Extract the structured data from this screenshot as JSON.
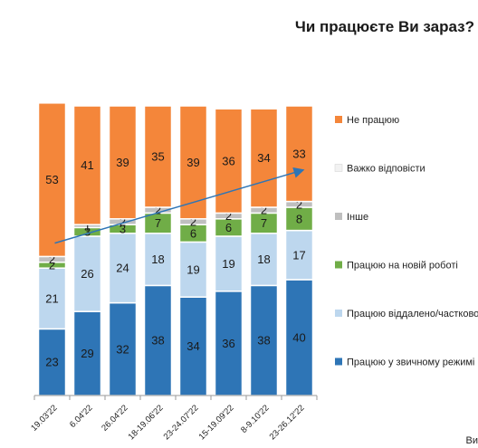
{
  "title": "Чи працюєте Ви зараз?",
  "footer_text": "Ви",
  "chart_data": {
    "type": "bar",
    "stacked": true,
    "orientation": "vertical",
    "categories": [
      "19.03'22",
      "6.04'22",
      "26.04'22",
      "18-19.06'22",
      "23-24.07'22",
      "15-19.09'22",
      "8-9.10'22",
      "23-26.12'22"
    ],
    "series": [
      {
        "name": "Працюю у звичному режимі",
        "color": "#2e75b6",
        "values": [
          23,
          29,
          32,
          38,
          34,
          36,
          38,
          40
        ]
      },
      {
        "name": "Працюю віддалено/частково",
        "color": "#bdd7ee",
        "values": [
          21,
          26,
          24,
          18,
          19,
          19,
          18,
          17
        ]
      },
      {
        "name": "Працюю на новій роботі",
        "color": "#70ad47",
        "values": [
          2,
          3,
          3,
          7,
          6,
          6,
          7,
          8
        ]
      },
      {
        "name": "Інше",
        "color": "#bfbfbf",
        "values": [
          2,
          1,
          2,
          2,
          2,
          2,
          2,
          2
        ]
      },
      {
        "name": "Важко відповісти",
        "color": "#f2f2f2",
        "values": [
          0,
          0,
          0,
          0,
          0,
          0,
          0,
          0
        ]
      },
      {
        "name": "Не працюю",
        "color": "#f4863a",
        "values": [
          53,
          41,
          39,
          35,
          39,
          36,
          34,
          33
        ]
      }
    ],
    "legend_order": [
      "Не працюю",
      "Важко відповісти",
      "Інше",
      "Працюю на новій роботі",
      "Працюю віддалено/частково",
      "Працюю у звичному режимі"
    ],
    "legend_position": "right",
    "trend_arrow": {
      "color": "#2e75b6",
      "from_series": "Не працюю",
      "direction": "up"
    },
    "ylim": [
      0,
      100
    ],
    "grid": false,
    "data_labels": true
  }
}
